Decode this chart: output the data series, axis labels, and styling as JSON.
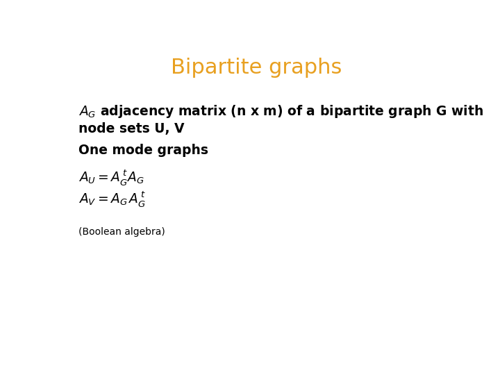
{
  "title": "Bipartite graphs",
  "title_color": "#E8A020",
  "title_fontsize": 22,
  "background_color": "#ffffff",
  "text_color": "#000000",
  "body_fontsize": 13.5,
  "small_fontsize": 10,
  "boolean_text": "(Boolean algebra)"
}
